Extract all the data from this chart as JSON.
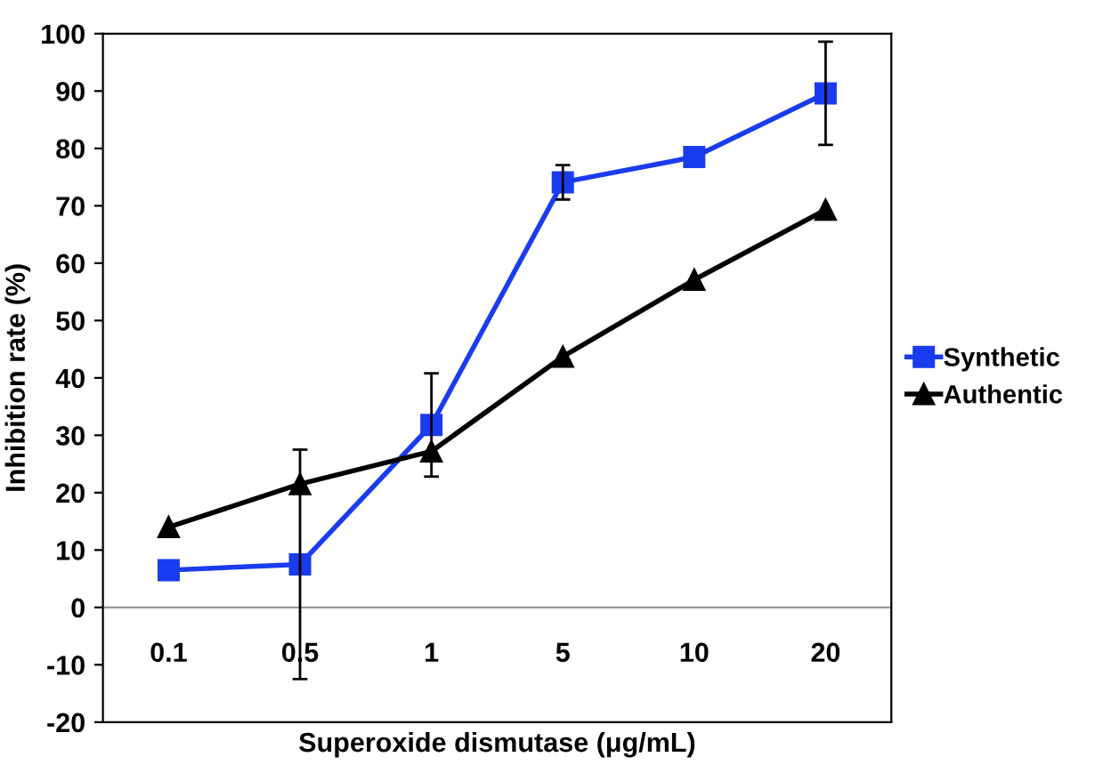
{
  "chart_data": {
    "type": "line",
    "xlabel": "Superoxide dismutase (μg/mL)",
    "ylabel": "Inhibition rate (%)",
    "categories": [
      "0.1",
      "0.5",
      "1",
      "5",
      "10",
      "20"
    ],
    "ylim": [
      -20,
      100
    ],
    "yticks": [
      -20,
      -10,
      0,
      10,
      20,
      30,
      40,
      50,
      60,
      70,
      80,
      90,
      100
    ],
    "series": [
      {
        "name": "Synthetic",
        "color": "#1a3cf0",
        "marker": "square",
        "values": [
          6.5,
          7.5,
          31.8,
          74.1,
          78.5,
          89.6
        ],
        "errors": [
          null,
          20,
          9,
          3,
          null,
          9
        ]
      },
      {
        "name": "Authentic",
        "color": "#000000",
        "marker": "triangle",
        "values": [
          14.0,
          21.5,
          27.2,
          43.7,
          57.1,
          69.3
        ]
      }
    ],
    "grid": false,
    "legend": "right",
    "line_style": "solid"
  }
}
